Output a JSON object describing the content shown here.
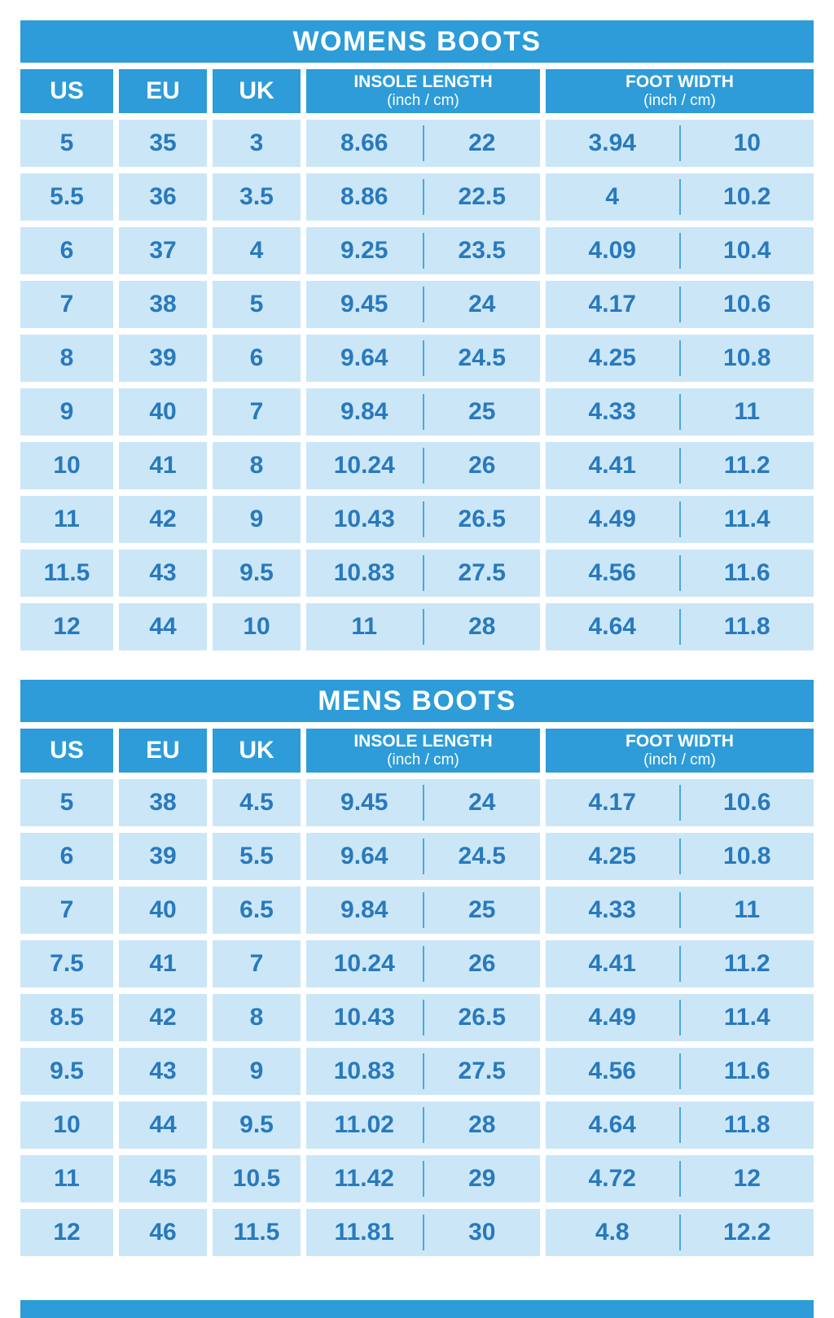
{
  "colors": {
    "accent_blue": "#2d9cd8",
    "cell_blue": "#cbe7f7",
    "text_blue": "#2979bd",
    "background": "#ffffff"
  },
  "chart_data": [
    {
      "type": "table",
      "title": "WOMENS BOOTS",
      "header": {
        "us": "US",
        "eu": "EU",
        "uk": "UK",
        "insole_title": "INSOLE LENGTH",
        "insole_sub": "(inch / cm)",
        "foot_title": "FOOT WIDTH",
        "foot_sub": "(inch / cm)"
      },
      "columns": [
        "US",
        "EU",
        "UK",
        "INSOLE LENGTH (inch / cm)",
        "FOOT WIDTH (inch / cm)"
      ],
      "rows": [
        [
          "5",
          "35",
          "3",
          "8.66",
          "22",
          "3.94",
          "10"
        ],
        [
          "5.5",
          "36",
          "3.5",
          "8.86",
          "22.5",
          "4",
          "10.2"
        ],
        [
          "6",
          "37",
          "4",
          "9.25",
          "23.5",
          "4.09",
          "10.4"
        ],
        [
          "7",
          "38",
          "5",
          "9.45",
          "24",
          "4.17",
          "10.6"
        ],
        [
          "8",
          "39",
          "6",
          "9.64",
          "24.5",
          "4.25",
          "10.8"
        ],
        [
          "9",
          "40",
          "7",
          "9.84",
          "25",
          "4.33",
          "11"
        ],
        [
          "10",
          "41",
          "8",
          "10.24",
          "26",
          "4.41",
          "11.2"
        ],
        [
          "11",
          "42",
          "9",
          "10.43",
          "26.5",
          "4.49",
          "11.4"
        ],
        [
          "11.5",
          "43",
          "9.5",
          "10.83",
          "27.5",
          "4.56",
          "11.6"
        ],
        [
          "12",
          "44",
          "10",
          "11",
          "28",
          "4.64",
          "11.8"
        ]
      ]
    },
    {
      "type": "table",
      "title": "MENS BOOTS",
      "header": {
        "us": "US",
        "eu": "EU",
        "uk": "UK",
        "insole_title": "INSOLE LENGTH",
        "insole_sub": "(inch / cm)",
        "foot_title": "FOOT WIDTH",
        "foot_sub": "(inch / cm)"
      },
      "columns": [
        "US",
        "EU",
        "UK",
        "INSOLE LENGTH (inch / cm)",
        "FOOT WIDTH (inch / cm)"
      ],
      "rows": [
        [
          "5",
          "38",
          "4.5",
          "9.45",
          "24",
          "4.17",
          "10.6"
        ],
        [
          "6",
          "39",
          "5.5",
          "9.64",
          "24.5",
          "4.25",
          "10.8"
        ],
        [
          "7",
          "40",
          "6.5",
          "9.84",
          "25",
          "4.33",
          "11"
        ],
        [
          "7.5",
          "41",
          "7",
          "10.24",
          "26",
          "4.41",
          "11.2"
        ],
        [
          "8.5",
          "42",
          "8",
          "10.43",
          "26.5",
          "4.49",
          "11.4"
        ],
        [
          "9.5",
          "43",
          "9",
          "10.83",
          "27.5",
          "4.56",
          "11.6"
        ],
        [
          "10",
          "44",
          "9.5",
          "11.02",
          "28",
          "4.64",
          "11.8"
        ],
        [
          "11",
          "45",
          "10.5",
          "11.42",
          "29",
          "4.72",
          "12"
        ],
        [
          "12",
          "46",
          "11.5",
          "11.81",
          "30",
          "4.8",
          "12.2"
        ]
      ]
    }
  ]
}
